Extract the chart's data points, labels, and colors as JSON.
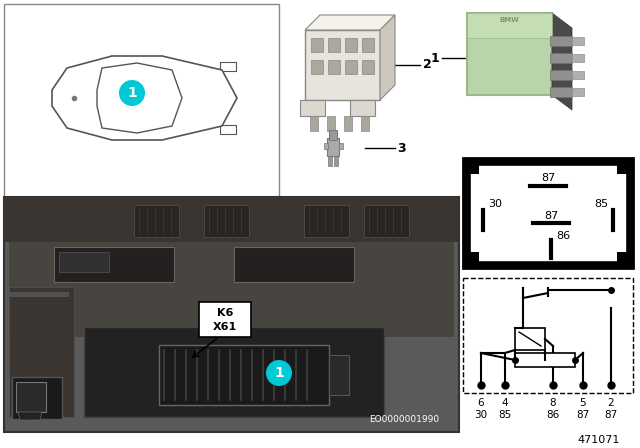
{
  "bg_color": "#ffffff",
  "cyan": "#00c8d4",
  "relay_green": "#b8d4a8",
  "eo_text": "EO0000001990",
  "part_num": "471071",
  "k6_text": "K6",
  "x61_text": "X61",
  "schematic_pins_row1": [
    "6",
    "4",
    "8",
    "5",
    "2"
  ],
  "schematic_pins_row2": [
    "30",
    "85",
    "86",
    "87",
    "87"
  ]
}
